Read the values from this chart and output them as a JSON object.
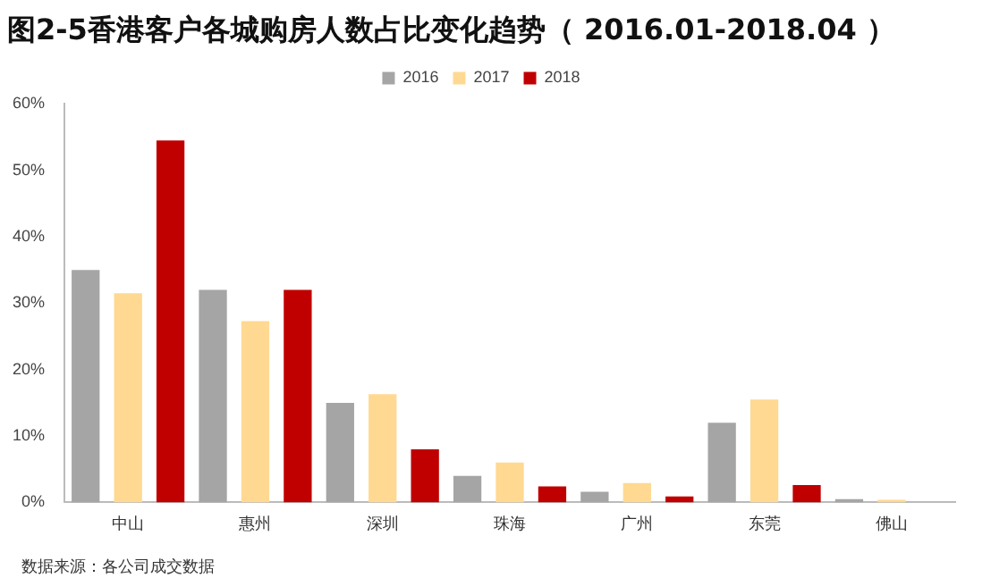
{
  "chart_data": {
    "type": "bar",
    "title": "图2-5香港客户各城购房人数占比变化趋势（ 2016.01-2018.04 ）",
    "categories": [
      "中山",
      "惠州",
      "深圳",
      "珠海",
      "广州",
      "东莞",
      "佛山"
    ],
    "series": [
      {
        "name": "2016",
        "color": "#a5a5a5",
        "values": [
          35,
          32,
          15,
          4,
          1.6,
          12,
          0.5
        ]
      },
      {
        "name": "2017",
        "color": "#ffd992",
        "values": [
          31.5,
          27.3,
          16.3,
          6,
          2.9,
          15.5,
          0.4
        ]
      },
      {
        "name": "2018",
        "color": "#c00000",
        "values": [
          54.5,
          32,
          8,
          2.4,
          0.9,
          2.6,
          0
        ]
      }
    ],
    "ylim": [
      0,
      60
    ],
    "yticks": [
      {
        "value": 0,
        "label": "0%"
      },
      {
        "value": 10,
        "label": "10%"
      },
      {
        "value": 20,
        "label": "20%"
      },
      {
        "value": 30,
        "label": "30%"
      },
      {
        "value": 40,
        "label": "40%"
      },
      {
        "value": 50,
        "label": "50%"
      },
      {
        "value": 60,
        "label": "60%"
      }
    ],
    "grid": false,
    "legend": "top",
    "annotations": [
      "数据来源：各公司成交数据"
    ]
  }
}
